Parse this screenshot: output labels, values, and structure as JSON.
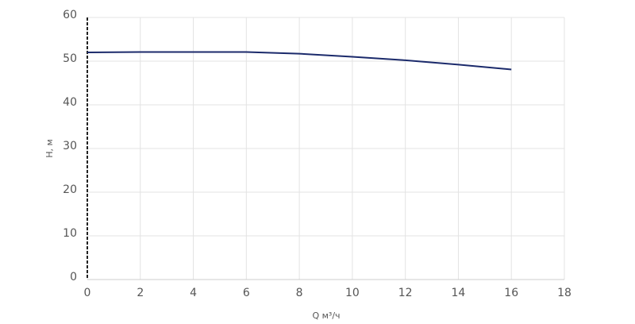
{
  "chart_data": {
    "type": "line",
    "x": [
      0,
      2,
      4,
      6,
      8,
      10,
      12,
      14,
      16
    ],
    "series": [
      {
        "color": "#1b2a6b",
        "values": [
          52,
          52.1,
          52.1,
          52.1,
          51.7,
          51,
          50.2,
          49.2,
          48.1
        ]
      }
    ],
    "xlabel": "Q м³/ч",
    "ylabel": "H, м",
    "xlim": [
      0,
      18
    ],
    "xticks": [
      0,
      2,
      4,
      6,
      8,
      10,
      12,
      14,
      16,
      18
    ],
    "ylim": [
      0,
      60
    ],
    "yticks": [
      0,
      10,
      20,
      30,
      40,
      50,
      60
    ],
    "grid": true
  }
}
